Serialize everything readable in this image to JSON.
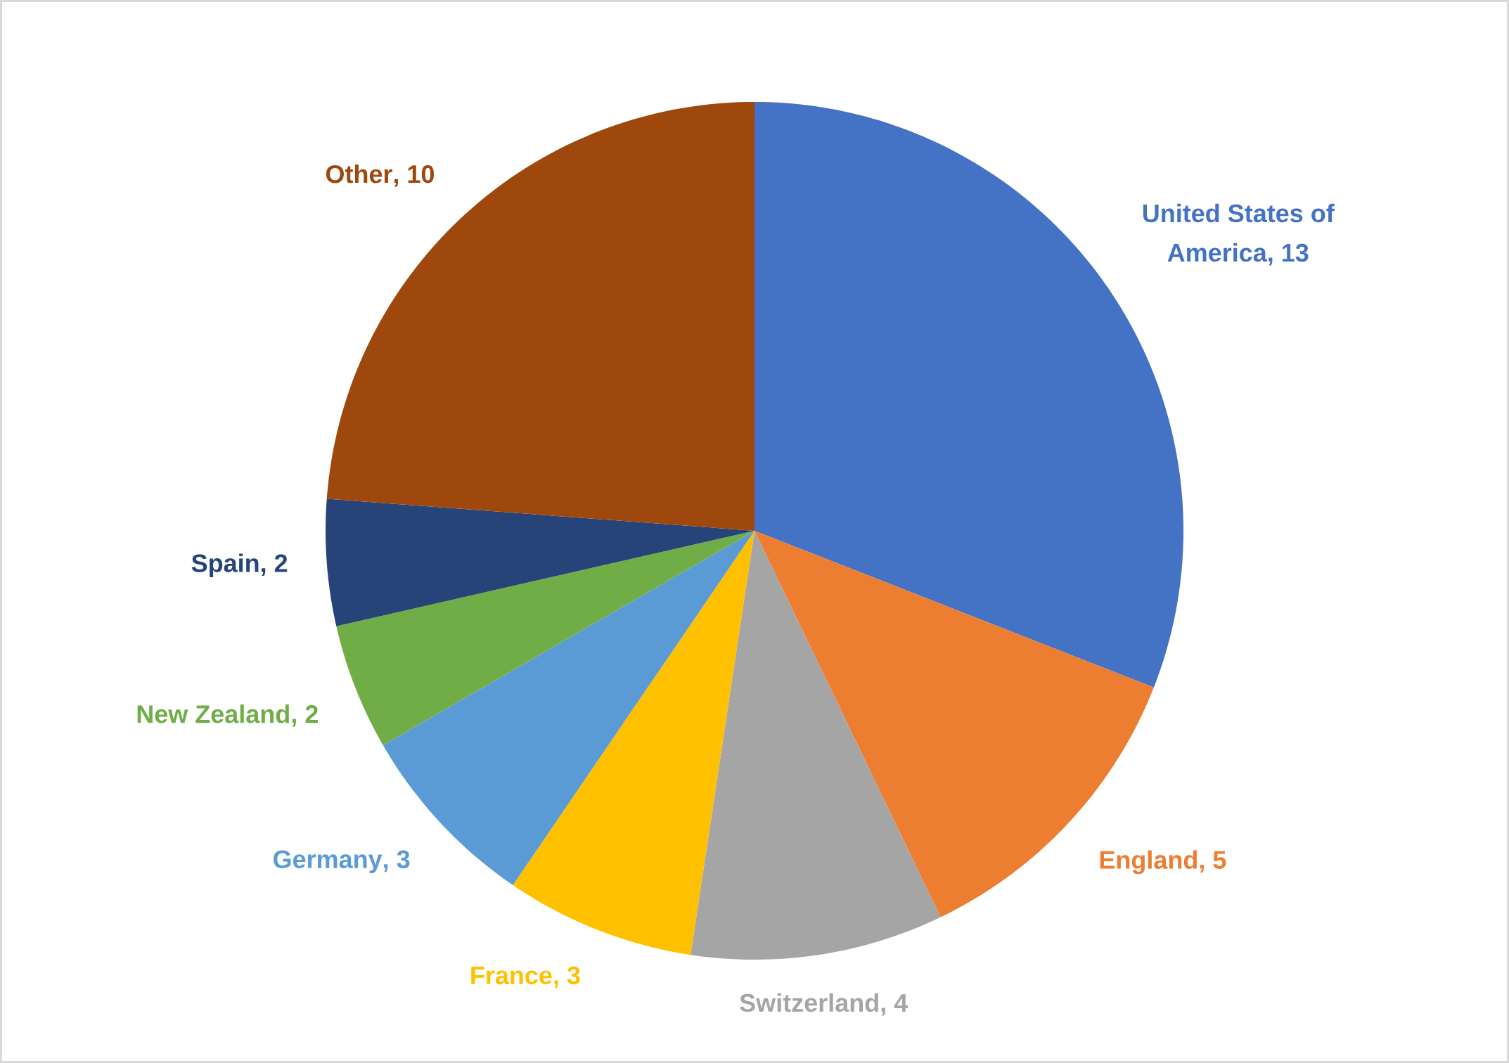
{
  "chart_data": {
    "type": "pie",
    "categories": [
      "United States of America",
      "England",
      "Switzerland",
      "France",
      "Germany",
      "New Zealand",
      "Spain",
      "Other"
    ],
    "values": [
      13,
      5,
      4,
      3,
      3,
      2,
      2,
      10
    ],
    "value_labels": [
      ", 13",
      ", 5",
      ", 4",
      ", 3",
      ", 3",
      ", 2",
      ", 2",
      ", 10"
    ],
    "colors": [
      "#4472c4",
      "#ed7d31",
      "#a5a5a5",
      "#ffc000",
      "#5b9bd5",
      "#70ad47",
      "#264478",
      "#9e480e"
    ]
  }
}
